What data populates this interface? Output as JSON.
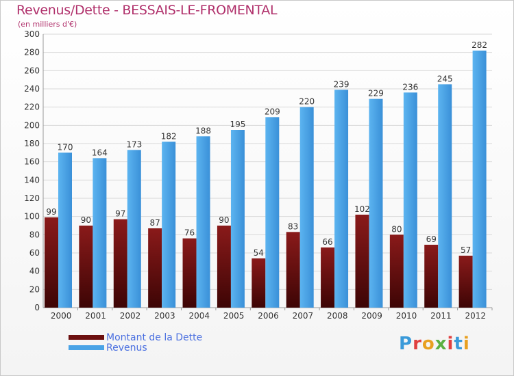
{
  "title": "Revenus/Dette - BESSAIS-LE-FROMENTAL",
  "subtitle": "(en milliers d'€)",
  "logo_text": "Proxiti",
  "colors": {
    "dette": "#6b0f0f",
    "revenus": "#4aa3e6",
    "axis_text": "#333333",
    "grid": "#d8d8d8"
  },
  "chart_data": {
    "type": "bar",
    "categories": [
      "2000",
      "2001",
      "2002",
      "2003",
      "2004",
      "2005",
      "2006",
      "2007",
      "2008",
      "2009",
      "2010",
      "2011",
      "2012"
    ],
    "series": [
      {
        "name": "Montant de la Dette",
        "values": [
          99,
          90,
          97,
          87,
          76,
          90,
          54,
          83,
          66,
          102,
          80,
          69,
          57
        ]
      },
      {
        "name": "Revenus",
        "values": [
          170,
          164,
          173,
          182,
          188,
          195,
          209,
          220,
          239,
          229,
          236,
          245,
          282
        ]
      }
    ],
    "ylim": [
      0,
      300
    ],
    "yticks": [
      0,
      20,
      40,
      60,
      80,
      100,
      120,
      140,
      160,
      180,
      200,
      220,
      240,
      260,
      280,
      300
    ],
    "grid": true,
    "legend": "bottom-left"
  }
}
